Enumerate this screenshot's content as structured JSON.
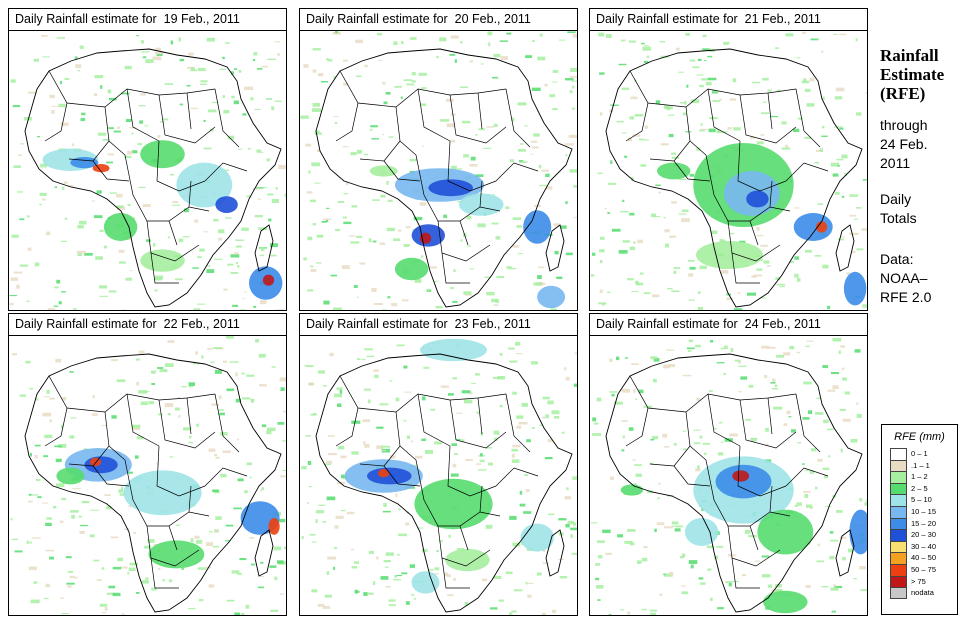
{
  "panels": [
    {
      "title": "Daily Rainfall estimate for  19 Feb., 2011"
    },
    {
      "title": "Daily Rainfall estimate for  20 Feb., 2011"
    },
    {
      "title": "Daily Rainfall estimate for  21 Feb., 2011"
    },
    {
      "title": "Daily Rainfall estimate for  22 Feb., 2011"
    },
    {
      "title": "Daily Rainfall estimate for  23 Feb., 2011"
    },
    {
      "title": "Daily Rainfall estimate for  24 Feb., 2011"
    }
  ],
  "sidebar": {
    "title_line1": "Rainfall",
    "title_line2": "Estimate",
    "title_line3": "(RFE)",
    "through_line1": "through",
    "through_line2": "24 Feb.",
    "through_line3": "2011",
    "daily_line1": "Daily",
    "daily_line2": "Totals",
    "data_line1": "Data:",
    "data_line2": "NOAA–",
    "data_line3": "RFE 2.0"
  },
  "legend": {
    "title": "RFE (mm)",
    "items": [
      {
        "label": "0 – 1",
        "color": "#ffffff"
      },
      {
        "label": ".1 – 1",
        "color": "#e8dcc4"
      },
      {
        "label": "1 – 2",
        "color": "#a6eea0"
      },
      {
        "label": "2 – 5",
        "color": "#55dc6e"
      },
      {
        "label": "5 – 10",
        "color": "#9ee3e8"
      },
      {
        "label": "10 – 15",
        "color": "#78b8f0"
      },
      {
        "label": "15 – 20",
        "color": "#3c8ce8"
      },
      {
        "label": "20 – 30",
        "color": "#1f50d8"
      },
      {
        "label": "30 – 40",
        "color": "#f8e070"
      },
      {
        "label": "40 – 50",
        "color": "#f4a020"
      },
      {
        "label": "50 – 75",
        "color": "#ec4010"
      },
      {
        "label": "> 75",
        "color": "#c01818"
      },
      {
        "label": "nodata",
        "color": "#c8c8c8"
      }
    ]
  }
}
